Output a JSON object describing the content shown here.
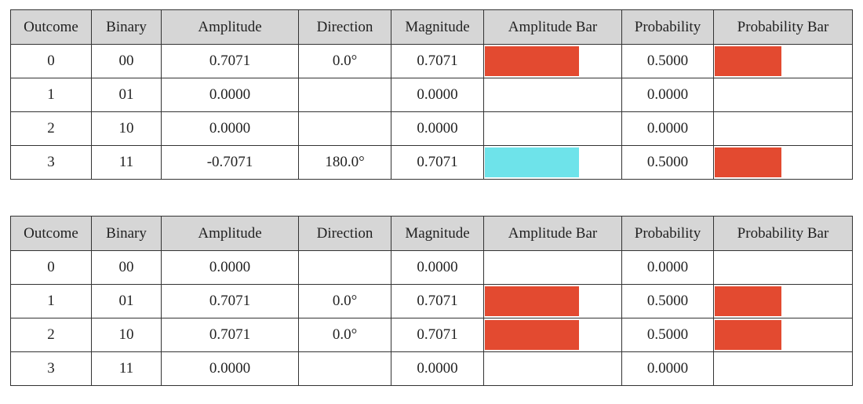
{
  "colors": {
    "positive": "#e34a30",
    "negative": "#6ee3ea",
    "header_bg": "#d6d6d6"
  },
  "columns": [
    "Outcome",
    "Binary",
    "Amplitude",
    "Direction",
    "Magnitude",
    "Amplitude Bar",
    "Probability",
    "Probability Bar"
  ],
  "tables": [
    {
      "rows": [
        {
          "outcome": "0",
          "binary": "00",
          "amplitude": "0.7071",
          "direction": "0.0°",
          "magnitude": "0.7071",
          "amp_level": 0.7071,
          "amp_sign": "positive",
          "probability": "0.5000",
          "prob_level": 0.5
        },
        {
          "outcome": "1",
          "binary": "01",
          "amplitude": "0.0000",
          "direction": "",
          "magnitude": "0.0000",
          "amp_level": 0,
          "amp_sign": "none",
          "probability": "0.0000",
          "prob_level": 0
        },
        {
          "outcome": "2",
          "binary": "10",
          "amplitude": "0.0000",
          "direction": "",
          "magnitude": "0.0000",
          "amp_level": 0,
          "amp_sign": "none",
          "probability": "0.0000",
          "prob_level": 0
        },
        {
          "outcome": "3",
          "binary": "11",
          "amplitude": "-0.7071",
          "direction": "180.0°",
          "magnitude": "0.7071",
          "amp_level": 0.7071,
          "amp_sign": "negative",
          "probability": "0.5000",
          "prob_level": 0.5
        }
      ]
    },
    {
      "rows": [
        {
          "outcome": "0",
          "binary": "00",
          "amplitude": "0.0000",
          "direction": "",
          "magnitude": "0.0000",
          "amp_level": 0,
          "amp_sign": "none",
          "probability": "0.0000",
          "prob_level": 0
        },
        {
          "outcome": "1",
          "binary": "01",
          "amplitude": "0.7071",
          "direction": "0.0°",
          "magnitude": "0.7071",
          "amp_level": 0.7071,
          "amp_sign": "positive",
          "probability": "0.5000",
          "prob_level": 0.5
        },
        {
          "outcome": "2",
          "binary": "10",
          "amplitude": "0.7071",
          "direction": "0.0°",
          "magnitude": "0.7071",
          "amp_level": 0.7071,
          "amp_sign": "positive",
          "probability": "0.5000",
          "prob_level": 0.5
        },
        {
          "outcome": "3",
          "binary": "11",
          "amplitude": "0.0000",
          "direction": "",
          "magnitude": "0.0000",
          "amp_level": 0,
          "amp_sign": "none",
          "probability": "0.0000",
          "prob_level": 0
        }
      ]
    }
  ]
}
